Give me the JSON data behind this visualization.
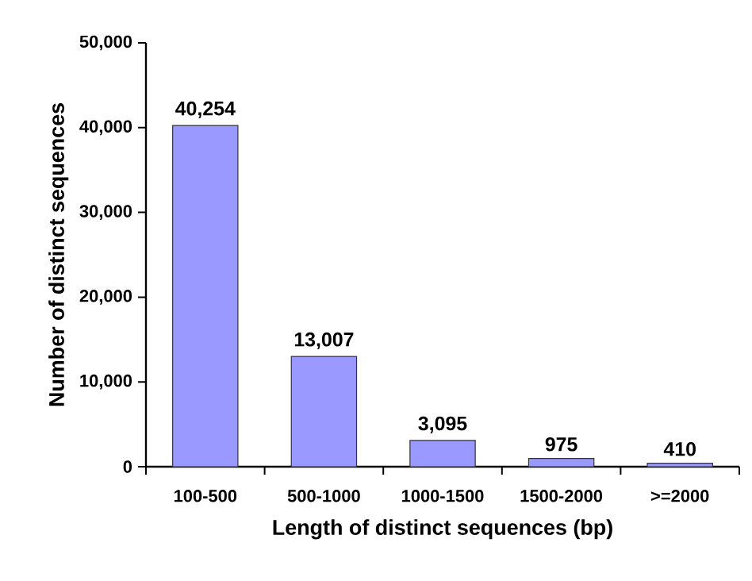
{
  "chart_data": {
    "type": "bar",
    "xlabel": "Length of distinct sequences (bp)",
    "ylabel": "Number of distinct sequences",
    "categories": [
      "100-500",
      "500-1000",
      "1000-1500",
      "1500-2000",
      ">=2000"
    ],
    "values": [
      40254,
      13007,
      3095,
      975,
      410
    ],
    "value_labels": [
      "40,254",
      "13,007",
      "3,095",
      "975",
      "410"
    ],
    "color": "#9999ff",
    "ylim": [
      0,
      50000
    ],
    "yticks": [
      {
        "value": 0,
        "label": "0"
      },
      {
        "value": 10000,
        "label": "10,000"
      },
      {
        "value": 20000,
        "label": "20,000"
      },
      {
        "value": 30000,
        "label": "30,000"
      },
      {
        "value": 40000,
        "label": "40,000"
      },
      {
        "value": 50000,
        "label": "50,000"
      }
    ],
    "grid": false,
    "legend": false
  }
}
